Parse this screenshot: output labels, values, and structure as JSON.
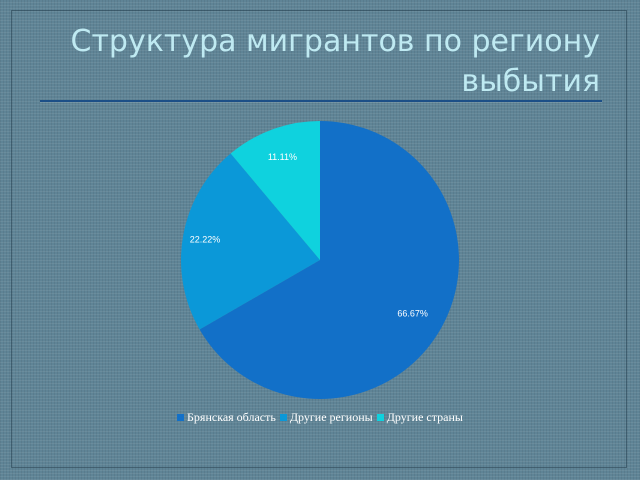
{
  "slide": {
    "title": "Структура мигрантов по региону выбытия"
  },
  "chart_data": {
    "type": "pie",
    "title": "",
    "categories": [
      "Брянская область",
      "Другие регионы",
      "Другие страны"
    ],
    "values": [
      66.67,
      22.22,
      11.11
    ],
    "labels": [
      "66.67%",
      "22.22%",
      "11.11%"
    ],
    "colors": [
      "#1270c8",
      "#0b98d8",
      "#0fd2de"
    ],
    "legend_position": "bottom"
  }
}
